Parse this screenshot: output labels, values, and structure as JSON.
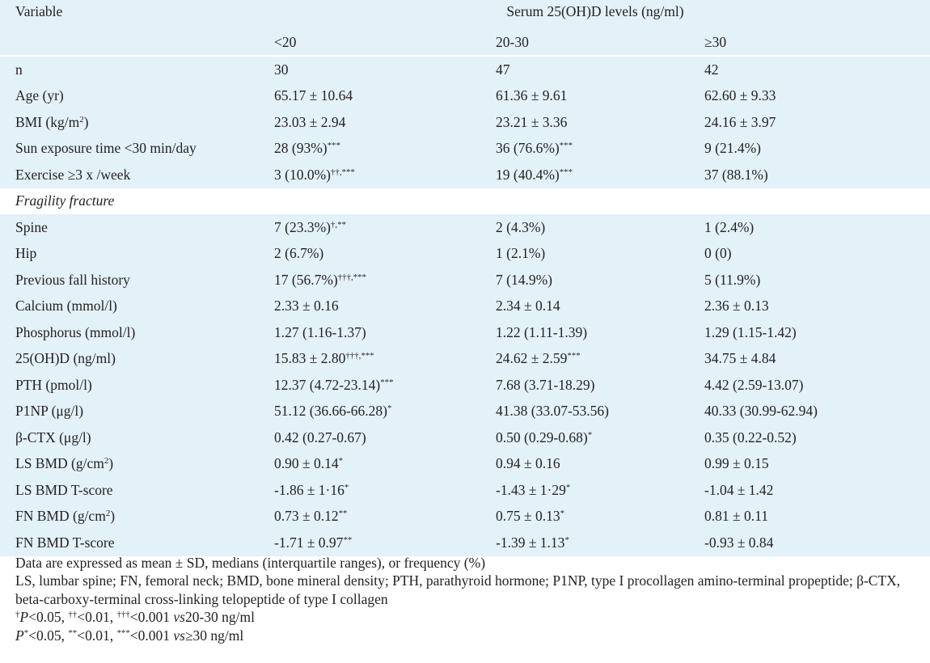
{
  "header": {
    "variable_label": "Variable",
    "group_title": "Serum 25(OH)D levels (ng/ml)",
    "columns": [
      "<20",
      "20-30",
      "≥30"
    ]
  },
  "rows": [
    {
      "label": "n",
      "c1": "30",
      "c2": "47",
      "c3": "42"
    },
    {
      "label": "Age (yr)",
      "c1": "65.17 ± 10.64",
      "c2": "61.36 ± 9.61",
      "c3": "62.60 ± 9.33"
    },
    {
      "label_pre": "BMI (kg/m",
      "label_sup": "2",
      "label_post": ")",
      "c1": "23.03 ± 2.94",
      "c2": "23.21 ± 3.36",
      "c3": "24.16 ± 3.97"
    },
    {
      "label": "Sun exposure time <30 min/day",
      "c1": "28 (93%)",
      "c1_sup": "***",
      "c2": "36 (76.6%)",
      "c2_sup": "***",
      "c3": "9 (21.4%)"
    },
    {
      "label": "Exercise ≥3 x /week",
      "c1": "3 (10.0%)",
      "c1_sup": "††,***",
      "c2": "19 (40.4%)",
      "c2_sup": "***",
      "c3": "37 (88.1%)"
    },
    {
      "section": "Fragility fracture"
    },
    {
      "label": "Spine",
      "c1": "7 (23.3%)",
      "c1_sup": "†,**",
      "c2": "2 (4.3%)",
      "c3": "1 (2.4%)"
    },
    {
      "label": "Hip",
      "c1": "2 (6.7%)",
      "c2": "1 (2.1%)",
      "c3": "0 (0)"
    },
    {
      "label": "Previous fall history",
      "c1": "17 (56.7%)",
      "c1_sup": "†††,***",
      "c2": "7 (14.9%)",
      "c3": "5 (11.9%)"
    },
    {
      "label": "Calcium (mmol/l)",
      "c1": "2.33 ± 0.16",
      "c2": "2.34 ± 0.14",
      "c3": "2.36 ± 0.13"
    },
    {
      "label": "Phosphorus (mmol/l)",
      "c1": "1.27 (1.16-1.37)",
      "c2": "1.22 (1.11-1.39)",
      "c3": "1.29 (1.15-1.42)"
    },
    {
      "label": "25(OH)D (ng/ml)",
      "c1": "15.83 ± 2.80",
      "c1_sup": "†††,***",
      "c2": "24.62 ± 2.59",
      "c2_sup": "***",
      "c3": "34.75 ± 4.84"
    },
    {
      "label": "PTH (pmol/l)",
      "c1": "12.37 (4.72-23.14)",
      "c1_sup": "***",
      "c2": "7.68 (3.71-18.29)",
      "c3": "4.42 (2.59-13.07)"
    },
    {
      "label": "P1NP (μg/l)",
      "c1": "51.12 (36.66-66.28)",
      "c1_sup": "*",
      "c2": "41.38 (33.07-53.56)",
      "c3": "40.33 (30.99-62.94)"
    },
    {
      "label": "β-CTX (μg/l)",
      "c1": "0.42 (0.27-0.67)",
      "c2": "0.50 (0.29-0.68)",
      "c2_sup": "*",
      "c3": "0.35 (0.22-0.52)"
    },
    {
      "label_pre": "LS BMD (g/cm",
      "label_sup": "2",
      "label_post": ")",
      "c1": "0.90 ± 0.14",
      "c1_sup": "*",
      "c2": "0.94 ± 0.16",
      "c3": "0.99 ± 0.15"
    },
    {
      "label": "LS BMD T-score",
      "c1": "-1.86 ± 1·16",
      "c1_sup": "*",
      "c2": "-1.43 ± 1·29",
      "c2_sup": "*",
      "c3": "-1.04 ± 1.42"
    },
    {
      "label_pre": "FN BMD (g/cm",
      "label_sup": "2",
      "label_post": ")",
      "c1": "0.73 ± 0.12",
      "c1_sup": "**",
      "c2": "0.75 ± 0.13",
      "c2_sup": "*",
      "c3": "0.81 ± 0.11"
    },
    {
      "label": "FN BMD T-score",
      "c1": "-1.71 ± 0.97",
      "c1_sup": "**",
      "c2": "-1.39 ± 1.13",
      "c2_sup": "*",
      "c3": "-0.93 ± 0.84"
    }
  ],
  "notes": {
    "line1": "Data are expressed as mean ± SD, medians (interquartile ranges), or frequency (%)",
    "line2": "LS, lumbar spine; FN, femoral neck; BMD, bone mineral density; PTH, parathyroid hormone; P1NP, type I procollagen amino-terminal propeptide; β-CTX, beta-carboxy-terminal cross-linking telopeptide of type I collagen",
    "line3": {
      "sup1": "†",
      "p": "P",
      "t1": "<0.05, ",
      "sup2": "††",
      "t2": "<0.01, ",
      "sup3": "†††",
      "t3": "<0.001 ",
      "vs": "vs",
      "t4": "20-30 ng/ml"
    },
    "line4": {
      "p": "P",
      "sup1": "*",
      "t1": "<0.05, ",
      "sup2": "**",
      "t2": "<0.01, ",
      "sup3": "***",
      "t3": "<0.001 ",
      "vs": "vs",
      "t4": "≥30 ng/ml"
    }
  },
  "colors": {
    "shade": "#e3f1f9",
    "background": "#ffffff",
    "text": "#231f20"
  }
}
